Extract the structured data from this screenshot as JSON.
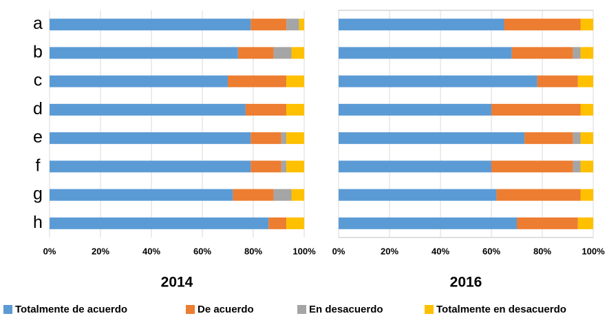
{
  "chart_data": [
    {
      "type": "stacked-bar",
      "title": "2014",
      "categories": [
        "a",
        "b",
        "c",
        "d",
        "e",
        "f",
        "g",
        "h"
      ],
      "series": [
        {
          "name": "Totalmente de acuerdo",
          "color": "#5b9bd5",
          "values": [
            79,
            74,
            70,
            77,
            79,
            79,
            72,
            86
          ]
        },
        {
          "name": "De acuerdo",
          "color": "#ed7d31",
          "values": [
            14,
            14,
            23,
            16,
            12,
            12,
            16,
            7
          ]
        },
        {
          "name": "En desacuerdo",
          "color": "#a5a5a5",
          "values": [
            5,
            7,
            0,
            0,
            2,
            2,
            7,
            0
          ]
        },
        {
          "name": "Totalmente en desacuerdo",
          "color": "#ffc000",
          "values": [
            2,
            5,
            7,
            7,
            7,
            7,
            5,
            7
          ]
        }
      ],
      "xlim": [
        0,
        100
      ],
      "xticks": [
        {
          "value": 0,
          "label": "0%"
        },
        {
          "value": 20,
          "label": "20%"
        },
        {
          "value": 40,
          "label": "40%"
        },
        {
          "value": 60,
          "label": "60%"
        },
        {
          "value": 80,
          "label": "80%"
        },
        {
          "value": 100,
          "label": "100%"
        }
      ],
      "grid": true
    },
    {
      "type": "stacked-bar",
      "title": "2016",
      "categories": [
        null,
        null,
        null,
        null,
        null,
        null,
        null,
        null
      ],
      "series": [
        {
          "color": "#5b9bd5",
          "values": [
            65,
            68,
            78,
            60,
            73,
            60,
            62,
            70
          ]
        },
        {
          "color": "#ed7d31",
          "values": [
            30,
            24,
            16,
            35,
            19,
            32,
            33,
            24
          ]
        },
        {
          "color": "#a5a5a5",
          "values": [
            0,
            3,
            0,
            0,
            3,
            3,
            0,
            0
          ]
        },
        {
          "color": "#ffc000",
          "values": [
            5,
            5,
            6,
            5,
            5,
            5,
            5,
            6
          ]
        }
      ],
      "xlim": [
        0,
        100
      ],
      "xticks": [
        {
          "value": 0,
          "label": "0%"
        },
        {
          "value": 20,
          "label": "20%"
        },
        {
          "value": 40,
          "label": "40%"
        },
        {
          "value": 60,
          "label": "60%"
        },
        {
          "value": 80,
          "label": "80%"
        },
        {
          "value": 100,
          "label": "100%"
        }
      ],
      "grid": true
    }
  ]
}
